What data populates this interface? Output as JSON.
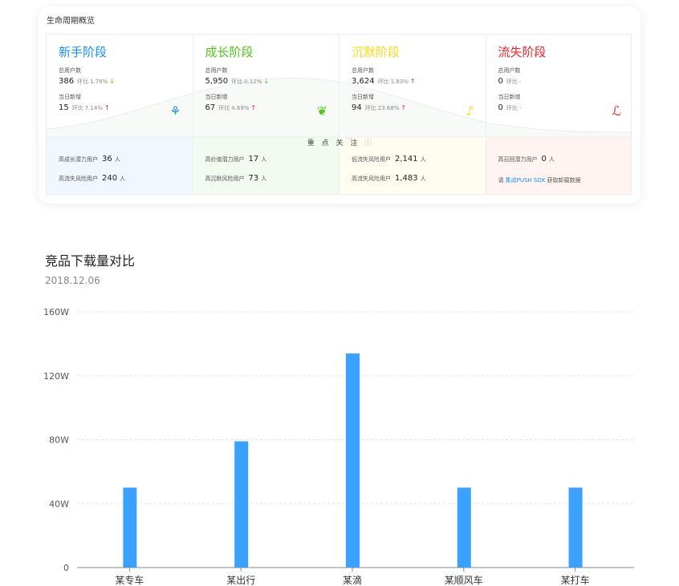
{
  "overview": {
    "title": "生命周期概览",
    "focus_label": "重 点 关 注",
    "stages": [
      {
        "name": "新手阶段",
        "color": "#1890ff",
        "total_label": "总用户数",
        "total": "386",
        "total_ratio_label": "环比",
        "total_ratio": "1.78%",
        "total_trend": "down",
        "new_label": "当日新增",
        "new": "15",
        "new_ratio_label": "环比",
        "new_ratio": "7.14%",
        "new_trend": "up",
        "icon": "sprout-icon",
        "rows": [
          {
            "label": "高成长潜力用户",
            "value": "36",
            "unit": "人"
          },
          {
            "label": "高流失风险用户",
            "value": "240",
            "unit": "人"
          }
        ]
      },
      {
        "name": "成长阶段",
        "color": "#52c41a",
        "total_label": "总用户数",
        "total": "5,950",
        "total_ratio_label": "环比",
        "total_ratio": "0.12%",
        "total_trend": "down",
        "new_label": "当日新增",
        "new": "67",
        "new_ratio_label": "环比",
        "new_ratio": "4.69%",
        "new_trend": "up",
        "icon": "plant-icon",
        "rows": [
          {
            "label": "高价值潜力用户",
            "value": "17",
            "unit": "人"
          },
          {
            "label": "高沉默风险用户",
            "value": "73",
            "unit": "人"
          }
        ]
      },
      {
        "name": "沉默阶段",
        "color": "#fadb14",
        "total_label": "总用户数",
        "total": "3,624",
        "total_ratio_label": "环比",
        "total_ratio": "1.83%",
        "total_trend": "up",
        "new_label": "当日新增",
        "new": "94",
        "new_ratio_label": "环比",
        "new_ratio": "23.68%",
        "new_trend": "up",
        "icon": "wilting-plant-icon",
        "rows": [
          {
            "label": "低流失风险用户",
            "value": "2,141",
            "unit": "人"
          },
          {
            "label": "高流失风险用户",
            "value": "1,483",
            "unit": "人"
          }
        ]
      },
      {
        "name": "流失阶段",
        "color": "#f5222d",
        "total_label": "总用户数",
        "total": "0",
        "total_ratio_label": "环比",
        "total_ratio": "-",
        "total_trend": "",
        "new_label": "当日新增",
        "new": "0",
        "new_ratio_label": "环比",
        "new_ratio": "-",
        "new_trend": "",
        "icon": "dead-plant-icon",
        "rows": [
          {
            "label": "高召回潜力用户",
            "value": "0",
            "unit": "人"
          }
        ],
        "sdk": {
          "prefix": "请",
          "link": "集成PUSH SDK",
          "suffix": "获取卸载数据"
        }
      }
    ]
  },
  "chart_data": {
    "type": "bar",
    "title": "竞品下载量对比",
    "subtitle": "2018.12.06",
    "categories": [
      "某专车",
      "某出行",
      "某滴",
      "某顺风车",
      "某打车"
    ],
    "values": [
      50,
      79,
      134,
      50,
      50
    ],
    "unit": "W",
    "yticks": [
      "0",
      "40W",
      "80W",
      "120W",
      "160W"
    ],
    "ylim": [
      0,
      160
    ],
    "grid": true,
    "bar_color": "#3ba1ff"
  }
}
